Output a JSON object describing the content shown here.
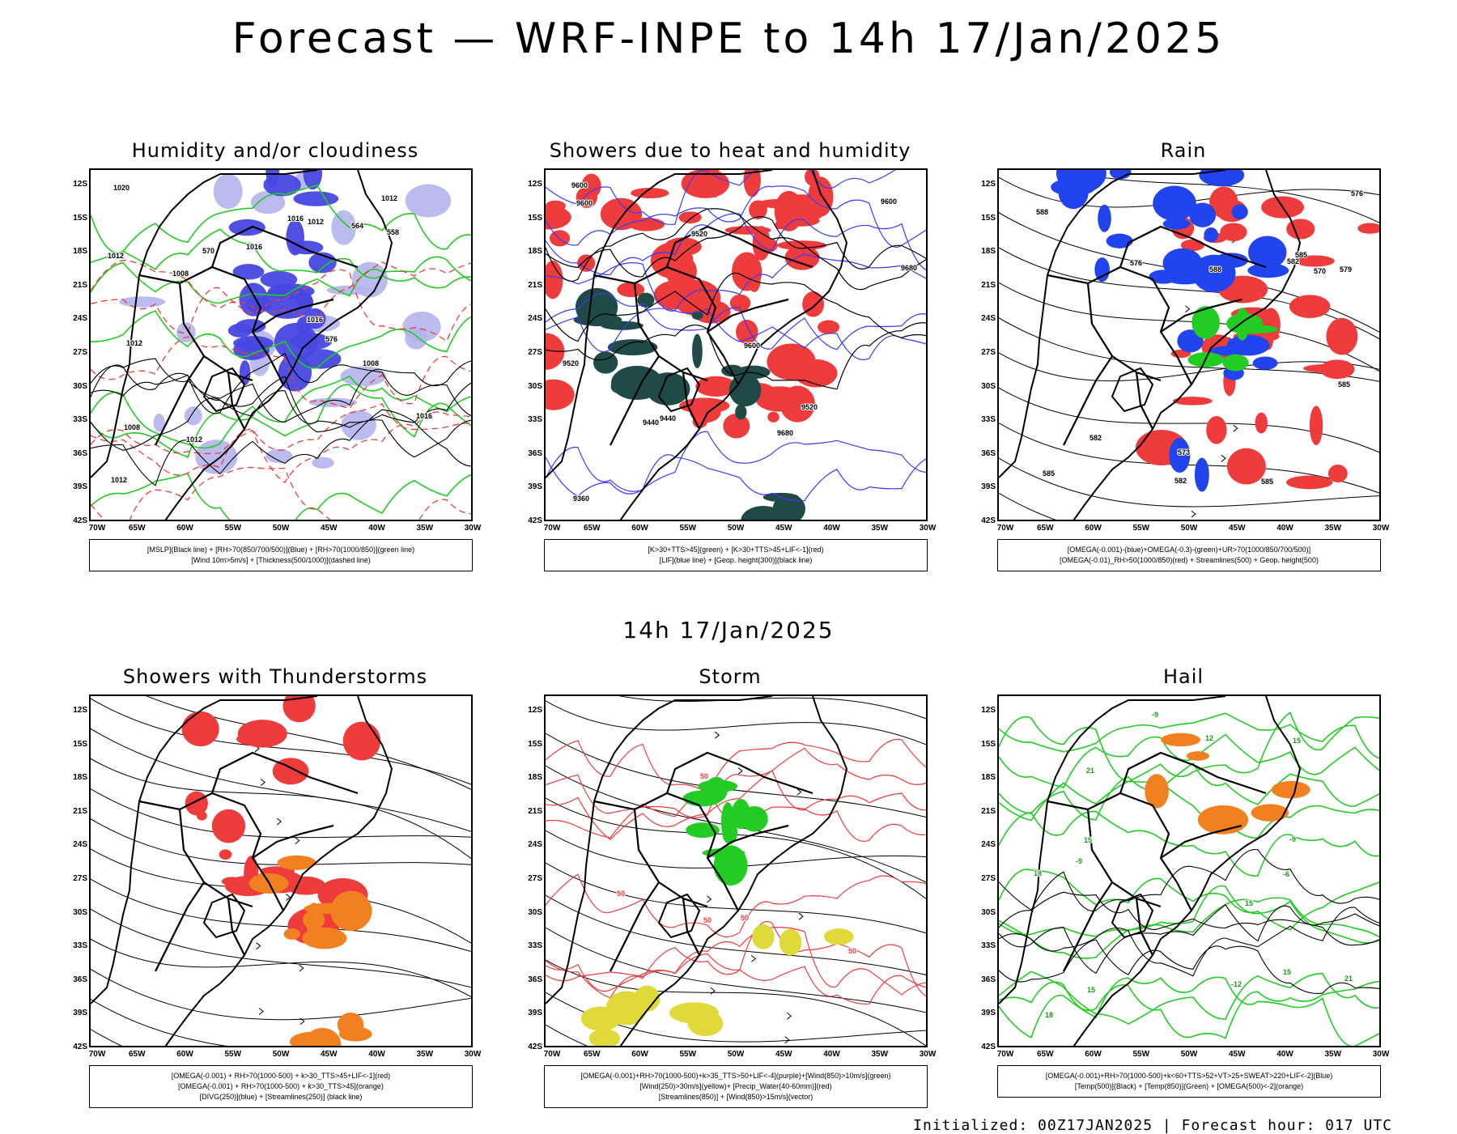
{
  "page": {
    "title": "Forecast — WRF-INPE to 14h 17/Jan/2025",
    "mid_title": "14h 17/Jan/2025",
    "footer": "Initialized: 00Z17JAN2025 | Forecast hour: 017 UTC"
  },
  "axes": {
    "lat_labels": [
      "12S",
      "15S",
      "18S",
      "21S",
      "24S",
      "27S",
      "30S",
      "33S",
      "36S",
      "39S",
      "42S"
    ],
    "lon_labels": [
      "70W",
      "65W",
      "60W",
      "55W",
      "50W",
      "45W",
      "40W",
      "35W",
      "30W"
    ]
  },
  "panels": [
    {
      "title": "Humidity and/or cloudiness",
      "legend": [
        "[MSLP](Black line) + [RH>70(850/700/500)](Blue) + [RH>70(1000/850)](green line)",
        "[Wind 10m>5m/s] + [Thickness(500/1000)](dashed line)"
      ],
      "contour_labels": [
        "1012",
        "1012",
        "1012",
        "1016",
        "1008",
        "1008",
        "1012",
        "1016",
        "1012",
        "1016",
        "1008",
        "1012",
        "1016",
        "1020",
        "576",
        "570",
        "564",
        "558"
      ]
    },
    {
      "title": "Showers due to heat and humidity",
      "legend": [
        "[K>30+TTS>45](green) + [K>30+TTS>45+LIF<-1](red)",
        "[LIF](blue line) + [Geop. height(300)](black line)"
      ],
      "contour_labels": [
        "9600",
        "9600",
        "9520",
        "9600",
        "9680",
        "9680",
        "9520",
        "9440",
        "9360",
        "9520",
        "9440",
        "9600"
      ]
    },
    {
      "title": "Rain",
      "legend": [
        "[OMEGA(-0.001)-(blue)+OMEGA(-0.3)-(green)+UR>70(1000/850/700/500)]",
        "[OMEGA(-0.01)_RH>50(1000/850)(red) + Streamlines(500) + Geop. height(500)"
      ],
      "contour_labels": [
        "585",
        "585",
        "585",
        "582",
        "582",
        "582",
        "579",
        "576",
        "573",
        "570",
        "585",
        "588",
        "588",
        "576"
      ]
    },
    {
      "title": "Showers with Thunderstorms",
      "legend": [
        "[OMEGA(-0.001) + RH>70(1000-500) + k>30_TTS>45+LIF<-1](red)",
        "[OMEGA(-0.001) + RH>70(1000-500) + k>30_TTS>45](orange)",
        "[DIVG(250)](blue) + [Streamlines(250)] (black line)"
      ],
      "contour_labels": []
    },
    {
      "title": "Storm",
      "legend": [
        "[OMEGA(-0.001)+RH>70(1000-500)+k>35_TTS>50+LIF<-4](purple)+[Wind(850)>10m/s](green)",
        "[Wind(250)>30m/s](yellow)+ [Precip_Water(40-60mm)](red)",
        "[Streamlines(850)] + [Wind(850)>15m/s](vector)"
      ],
      "contour_labels": [
        "50",
        "50",
        "50",
        "50",
        "50"
      ]
    },
    {
      "title": "Hail",
      "legend": [
        "[OMEGA(-0.001)+RH>70(1000-500)+k<60+TTS>52+VT>25+SWEAT>220+LIF<-2](Blue)",
        "[Temp(500)](Black) + [Temp(850)](Green) + [OMEGA(500)<-2](orange)"
      ],
      "contour_labels": [
        "15",
        "15",
        "15",
        "18",
        "21",
        "21",
        "15",
        "18",
        "-9",
        "-9",
        "-9",
        "-12",
        "12",
        "15",
        "-6"
      ]
    }
  ],
  "colors": {
    "rh_blue": "#4747e0",
    "rh_light": "#b4b4ee",
    "green": "#22cc22",
    "red": "#ee3b3b",
    "dark_teal": "#1f4a48",
    "orange": "#f08020",
    "yellow": "#e0d93a"
  }
}
